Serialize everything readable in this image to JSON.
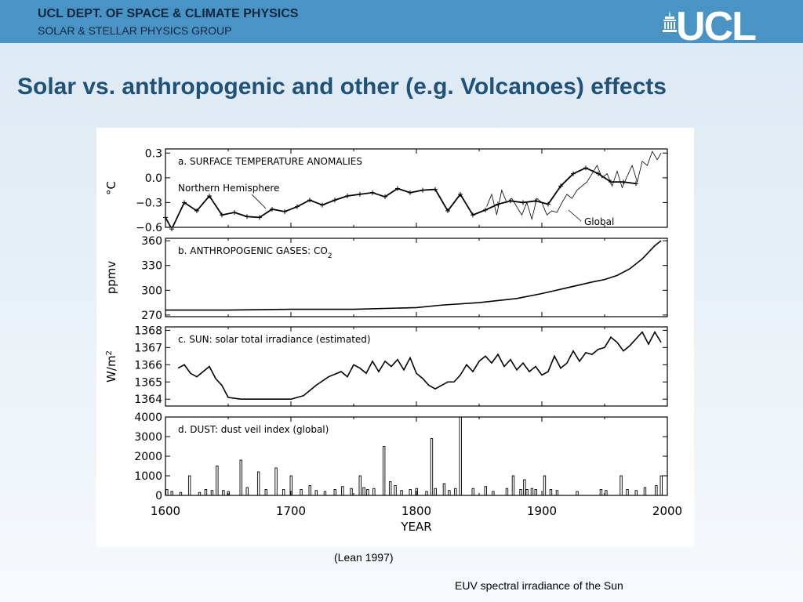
{
  "header": {
    "dept": "UCL DEPT. OF SPACE & CLIMATE PHYSICS",
    "group": "SOLAR & STELLAR PHYSICS GROUP",
    "logo": "UCL",
    "logo_icon": "portico-icon",
    "banner_color": "#4a94c5"
  },
  "slide": {
    "title": "Solar vs. anthropogenic and other (e.g. Volcanoes) effects",
    "caption": "(Lean 1997)",
    "footnote": "EUV spectral irradiance of the Sun",
    "title_color": "#1f5276"
  },
  "chart_data": [
    {
      "type": "line",
      "title": "a. SURFACE TEMPERATURE ANOMALIES",
      "ylabel": "°C",
      "xlim": [
        1600,
        2000
      ],
      "ylim": [
        -0.6,
        0.35
      ],
      "yticks": [
        0.3,
        0.0,
        -0.3,
        -0.6
      ],
      "ytick_labels": [
        "0.3",
        "0.0",
        "−0.3",
        "−0.6"
      ],
      "annotations": [
        "Northern Hemisphere",
        "Global"
      ],
      "series": [
        {
          "name": "Northern Hemisphere",
          "x": [
            1600,
            1605,
            1615,
            1625,
            1635,
            1645,
            1655,
            1665,
            1675,
            1685,
            1695,
            1705,
            1715,
            1725,
            1735,
            1745,
            1755,
            1765,
            1775,
            1785,
            1795,
            1805,
            1815,
            1825,
            1835,
            1845,
            1855,
            1865,
            1875,
            1885,
            1895,
            1905,
            1915,
            1925,
            1935,
            1945,
            1955,
            1965,
            1975
          ],
          "values": [
            -0.48,
            -0.62,
            -0.3,
            -0.4,
            -0.22,
            -0.45,
            -0.42,
            -0.47,
            -0.48,
            -0.38,
            -0.41,
            -0.35,
            -0.27,
            -0.33,
            -0.27,
            -0.22,
            -0.2,
            -0.18,
            -0.23,
            -0.13,
            -0.18,
            -0.15,
            -0.14,
            -0.4,
            -0.2,
            -0.45,
            -0.39,
            -0.32,
            -0.28,
            -0.3,
            -0.28,
            -0.32,
            -0.1,
            0.05,
            0.12,
            0.05,
            -0.05,
            -0.05,
            -0.07
          ]
        },
        {
          "name": "Global",
          "x": [
            1856,
            1860,
            1864,
            1868,
            1872,
            1876,
            1880,
            1884,
            1888,
            1892,
            1896,
            1900,
            1904,
            1908,
            1912,
            1916,
            1920,
            1924,
            1928,
            1932,
            1936,
            1940,
            1944,
            1948,
            1952,
            1956,
            1960,
            1964,
            1968,
            1972,
            1976,
            1980,
            1984,
            1988,
            1992,
            1995
          ],
          "values": [
            -0.35,
            -0.2,
            -0.45,
            -0.15,
            -0.3,
            -0.25,
            -0.35,
            -0.45,
            -0.3,
            -0.5,
            -0.25,
            -0.3,
            -0.45,
            -0.4,
            -0.42,
            -0.3,
            -0.2,
            -0.25,
            -0.15,
            -0.1,
            -0.05,
            0.05,
            0.15,
            0.0,
            0.05,
            -0.1,
            0.08,
            -0.12,
            0.02,
            0.15,
            -0.05,
            0.2,
            0.15,
            0.32,
            0.22,
            0.3
          ]
        }
      ]
    },
    {
      "type": "line",
      "title": "b. ANTHROPOGENIC GASES: CO",
      "title_sub": "2",
      "ylabel": "ppmv",
      "xlim": [
        1600,
        2000
      ],
      "ylim": [
        268,
        363
      ],
      "yticks": [
        360,
        330,
        300,
        270
      ],
      "x": [
        1600,
        1650,
        1700,
        1750,
        1800,
        1820,
        1850,
        1880,
        1900,
        1920,
        1940,
        1950,
        1960,
        1970,
        1980,
        1990,
        1995
      ],
      "values": [
        276,
        276,
        277,
        277,
        279,
        282,
        285,
        290,
        296,
        303,
        310,
        313,
        318,
        326,
        338,
        354,
        360
      ]
    },
    {
      "type": "line",
      "title": "c. SUN: solar total irradiance (estimated)",
      "ylabel": "W/m",
      "ylabel_sup": "2",
      "xlim": [
        1600,
        2000
      ],
      "ylim": [
        1363.6,
        1368.2
      ],
      "yticks": [
        1368,
        1367,
        1366,
        1365,
        1364
      ],
      "x": [
        1610,
        1615,
        1620,
        1625,
        1630,
        1635,
        1640,
        1645,
        1650,
        1660,
        1680,
        1700,
        1710,
        1715,
        1720,
        1730,
        1740,
        1745,
        1750,
        1755,
        1760,
        1765,
        1770,
        1775,
        1780,
        1785,
        1790,
        1795,
        1800,
        1805,
        1810,
        1815,
        1820,
        1825,
        1830,
        1835,
        1840,
        1845,
        1850,
        1855,
        1860,
        1865,
        1870,
        1875,
        1880,
        1885,
        1890,
        1895,
        1900,
        1905,
        1910,
        1915,
        1920,
        1925,
        1930,
        1935,
        1940,
        1945,
        1950,
        1955,
        1960,
        1965,
        1970,
        1975,
        1980,
        1985,
        1990,
        1995
      ],
      "values": [
        1365.8,
        1366.0,
        1365.5,
        1365.3,
        1365.6,
        1365.9,
        1365.2,
        1364.8,
        1364.1,
        1364.0,
        1364.0,
        1364.0,
        1364.2,
        1364.5,
        1364.8,
        1365.3,
        1365.6,
        1365.3,
        1366.0,
        1365.8,
        1365.5,
        1366.2,
        1365.6,
        1366.2,
        1365.9,
        1366.3,
        1365.7,
        1366.4,
        1365.5,
        1365.2,
        1364.8,
        1364.6,
        1364.8,
        1365.0,
        1365.0,
        1365.4,
        1366.0,
        1365.6,
        1366.2,
        1366.5,
        1366.1,
        1366.6,
        1365.9,
        1366.3,
        1365.7,
        1366.1,
        1365.6,
        1365.9,
        1365.4,
        1365.6,
        1366.5,
        1365.8,
        1366.1,
        1366.8,
        1366.2,
        1366.7,
        1366.6,
        1366.9,
        1367.0,
        1367.6,
        1367.3,
        1366.8,
        1367.1,
        1367.5,
        1367.9,
        1367.2,
        1367.9,
        1367.3
      ]
    },
    {
      "type": "bar",
      "title": "d. DUST: dust veil index (global)",
      "xlabel": "YEAR",
      "xlim": [
        1600,
        2000
      ],
      "ylim": [
        0,
        4000
      ],
      "yticks": [
        4000,
        3000,
        2000,
        1000,
        0
      ],
      "xticks": [
        1600,
        1700,
        1800,
        1900,
        2000
      ],
      "x": [
        1601,
        1605,
        1612,
        1619,
        1627,
        1632,
        1637,
        1641,
        1646,
        1650,
        1660,
        1665,
        1674,
        1680,
        1688,
        1694,
        1700,
        1708,
        1715,
        1720,
        1727,
        1735,
        1741,
        1748,
        1755,
        1758,
        1761,
        1766,
        1774,
        1779,
        1783,
        1788,
        1795,
        1800,
        1808,
        1812,
        1815,
        1822,
        1826,
        1831,
        1835,
        1845,
        1855,
        1861,
        1872,
        1877,
        1883,
        1886,
        1888,
        1892,
        1895,
        1902,
        1907,
        1912,
        1928,
        1947,
        1951,
        1963,
        1968,
        1975,
        1982,
        1991,
        1995
      ],
      "values": [
        300,
        200,
        150,
        1000,
        150,
        300,
        250,
        1500,
        250,
        200,
        1800,
        400,
        1200,
        300,
        1400,
        300,
        1000,
        300,
        500,
        250,
        200,
        300,
        450,
        350,
        1000,
        400,
        300,
        350,
        2500,
        700,
        500,
        250,
        300,
        350,
        200,
        2900,
        350,
        600,
        250,
        350,
        4000,
        350,
        450,
        200,
        350,
        1000,
        300,
        800,
        300,
        350,
        300,
        1000,
        300,
        250,
        200,
        300,
        250,
        1000,
        300,
        250,
        400,
        500,
        1000
      ]
    }
  ]
}
